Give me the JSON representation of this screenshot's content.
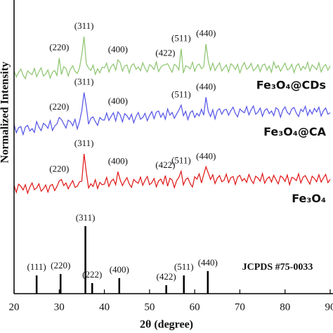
{
  "chart_data": {
    "type": "line",
    "xlabel": "2θ (degree)",
    "ylabel": "Normalized Intensity",
    "xlim": [
      20,
      90
    ],
    "xticks": [
      20,
      30,
      40,
      50,
      60,
      70,
      80,
      90
    ],
    "ylim": [
      0,
      100
    ],
    "x": [
      20,
      20.5,
      21,
      21.5,
      22,
      22.5,
      23,
      23.5,
      24,
      24.5,
      25,
      25.5,
      26,
      26.5,
      27,
      27.5,
      28,
      28.5,
      29,
      29.5,
      30,
      30.5,
      31,
      31.5,
      32,
      32.5,
      33,
      33.5,
      34,
      34.5,
      35,
      35.5,
      36,
      36.5,
      37,
      37.5,
      38,
      38.5,
      39,
      39.5,
      40,
      40.5,
      41,
      41.5,
      42,
      42.5,
      43,
      43.5,
      44,
      44.5,
      45,
      45.5,
      46,
      46.5,
      47,
      47.5,
      48,
      48.5,
      49,
      49.5,
      50,
      50.5,
      51,
      51.5,
      52,
      52.5,
      53,
      53.5,
      54,
      54.5,
      55,
      55.5,
      56,
      56.5,
      57,
      57.5,
      58,
      58.5,
      59,
      59.5,
      60,
      60.5,
      61,
      61.5,
      62,
      62.5,
      63,
      63.5,
      64,
      64.5,
      65,
      65.5,
      66,
      66.5,
      67,
      67.5,
      68,
      68.5,
      69,
      69.5,
      70,
      70.5,
      71,
      71.5,
      72,
      72.5,
      73,
      73.5,
      74,
      74.5,
      75,
      75.5,
      76,
      76.5,
      77,
      77.5,
      78,
      78.5,
      79,
      79.5,
      80,
      80.5,
      81,
      81.5,
      82,
      82.5,
      83,
      83.5,
      84,
      84.5,
      85,
      85.5,
      86,
      86.5,
      87,
      87.5,
      88,
      88.5,
      89,
      89.5,
      90
    ],
    "series": [
      {
        "name": "Fe₃O₄@CDs",
        "color": "#8cc46e",
        "values": [
          75.8,
          73.8,
          75.3,
          76.5,
          74.4,
          73.2,
          75.9,
          75.1,
          74.6,
          76.7,
          73.9,
          75.6,
          76.9,
          74.1,
          74.8,
          76.2,
          73.4,
          75.4,
          76.0,
          74.3,
          80.2,
          74.6,
          77.3,
          76.7,
          74.1,
          76.5,
          77.6,
          75.7,
          75.0,
          76.9,
          81.4,
          87.5,
          78.3,
          76.8,
          76.0,
          77.8,
          74.7,
          76.6,
          75.2,
          77.1,
          76.9,
          78.5,
          75.5,
          77.3,
          78.2,
          76.1,
          79.6,
          78.7,
          75.8,
          77.5,
          77.9,
          75.2,
          77.7,
          78.3,
          76.4,
          77.2,
          75.9,
          78.6,
          76.7,
          75.5,
          78.0,
          77.4,
          76.3,
          78.9,
          75.6,
          77.1,
          77.8,
          78.0,
          78.3,
          76.8,
          75.4,
          78.1,
          77.5,
          76.2,
          83.4,
          75.1,
          77.6,
          77.3,
          76.5,
          78.8,
          75.7,
          77.7,
          78.2,
          76.6,
          77.3,
          85.0,
          79.2,
          76.1,
          78.5,
          76.0,
          77.4,
          78.6,
          75.8,
          76.9,
          77.9,
          75.5,
          78.3,
          77.6,
          76.3,
          78.1,
          75.2,
          77.3,
          78.7,
          76.4,
          77.0,
          78.4,
          75.9,
          76.7,
          78.0,
          75.6,
          77.8,
          78.2,
          76.1,
          77.5,
          75.4,
          78.9,
          76.8,
          77.7,
          75.7,
          77.2,
          78.5,
          76.2,
          76.6,
          78.1,
          75.3,
          77.6,
          78.3,
          76.0,
          77.4,
          76.5,
          78.8,
          75.8,
          77.9,
          77.1,
          76.3,
          78.6,
          75.5,
          77.3,
          78.0,
          76.1,
          77.5
        ],
        "peaks": [
          {
            "label": "(220)",
            "x": 30
          },
          {
            "label": "(311)",
            "x": 35.5
          },
          {
            "label": "(400)",
            "x": 43
          },
          {
            "label": "(422)",
            "x": 53.5
          },
          {
            "label": "(511)",
            "x": 57
          },
          {
            "label": "(440)",
            "x": 62.5
          }
        ]
      },
      {
        "name": "Fe₃O₄@CA",
        "color": "#5353e6",
        "values": [
          57.7,
          54.8,
          56.5,
          56.9,
          54.2,
          56.7,
          57.3,
          55.4,
          56.2,
          54.9,
          58.6,
          56.7,
          55.5,
          58.0,
          57.4,
          56.3,
          58.9,
          55.6,
          57.1,
          57.8,
          60.0,
          59.3,
          57.8,
          56.4,
          59.1,
          58.5,
          57.2,
          59.4,
          56.1,
          58.6,
          62.3,
          68.5,
          63.8,
          57.7,
          59.7,
          60.2,
          58.6,
          57.3,
          60.0,
          59.2,
          59.1,
          61.5,
          59.0,
          60.4,
          61.6,
          58.8,
          61.9,
          60.9,
          58.5,
          61.3,
          60.6,
          59.3,
          61.1,
          58.2,
          60.3,
          61.7,
          59.4,
          60.0,
          61.4,
          58.9,
          60.7,
          62.0,
          59.6,
          61.8,
          62.2,
          60.1,
          61.5,
          59.4,
          62.9,
          60.8,
          61.7,
          59.7,
          61.2,
          62.5,
          64.2,
          60.6,
          62.1,
          59.3,
          61.6,
          62.3,
          60.0,
          61.4,
          60.5,
          62.8,
          60.8,
          66.9,
          62.1,
          60.3,
          62.6,
          59.5,
          62.3,
          63.0,
          61.1,
          62.5,
          62.8,
          60.8,
          62.3,
          63.5,
          61.4,
          60.2,
          62.9,
          62.1,
          61.6,
          63.7,
          60.9,
          62.6,
          63.9,
          61.1,
          61.8,
          63.2,
          60.4,
          62.4,
          63.0,
          61.3,
          62.2,
          60.6,
          63.3,
          62.7,
          60.1,
          62.5,
          63.6,
          61.7,
          61.0,
          62.9,
          63.4,
          61.5,
          60.3,
          62.8,
          62.0,
          63.8,
          60.7,
          62.6,
          61.2,
          63.1,
          61.9,
          63.5,
          60.5,
          62.3,
          63.2,
          61.1,
          61.6
        ],
        "peaks": [
          {
            "label": "(220)",
            "x": 30
          },
          {
            "label": "(311)",
            "x": 35.5
          },
          {
            "label": "(400)",
            "x": 43
          },
          {
            "label": "(511)",
            "x": 57
          },
          {
            "label": "(440)",
            "x": 62.5
          }
        ]
      },
      {
        "name": "Fe₃O₄",
        "color": "#e01414",
        "values": [
          36.9,
          34.5,
          37.3,
          36.6,
          35.3,
          37.1,
          34.2,
          36.3,
          37.7,
          35.4,
          36.0,
          37.4,
          34.9,
          35.7,
          37.0,
          34.6,
          36.8,
          37.2,
          35.1,
          36.5,
          38.4,
          38.9,
          36.8,
          37.7,
          35.7,
          37.2,
          38.5,
          36.2,
          36.6,
          38.1,
          38.3,
          47.6,
          41.3,
          36.0,
          37.4,
          36.5,
          38.8,
          35.8,
          37.9,
          37.1,
          37.3,
          39.6,
          36.5,
          38.3,
          39.0,
          37.1,
          41.5,
          38.8,
          36.8,
          38.3,
          39.5,
          37.4,
          36.2,
          38.9,
          38.1,
          37.6,
          39.7,
          36.9,
          38.6,
          39.9,
          37.1,
          37.8,
          39.2,
          36.4,
          38.4,
          39.0,
          37.3,
          40.2,
          36.6,
          39.3,
          38.7,
          36.1,
          38.5,
          39.6,
          41.7,
          37.0,
          38.9,
          39.4,
          37.5,
          36.3,
          39.8,
          39.0,
          40.8,
          37.7,
          40.6,
          43.2,
          41.1,
          38.9,
          40.5,
          37.5,
          39.3,
          40.2,
          38.1,
          38.6,
          40.7,
          37.8,
          39.5,
          39.9,
          37.2,
          39.7,
          40.3,
          38.4,
          39.2,
          37.9,
          40.6,
          38.7,
          37.5,
          40.0,
          39.4,
          38.3,
          40.9,
          37.6,
          39.1,
          39.8,
          38.0,
          40.3,
          38.8,
          37.4,
          40.1,
          39.5,
          38.2,
          40.4,
          37.1,
          39.6,
          39.3,
          38.5,
          40.8,
          37.7,
          39.7,
          40.2,
          38.6,
          37.3,
          40.0,
          39.2,
          38.1,
          40.5,
          38.0,
          39.4,
          40.6,
          37.8,
          38.9
        ],
        "peaks": [
          {
            "label": "(220)",
            "x": 30
          },
          {
            "label": "(311)",
            "x": 35.5
          },
          {
            "label": "(400)",
            "x": 43
          },
          {
            "label": "(422)",
            "x": 53.5
          },
          {
            "label": "(511)",
            "x": 57
          },
          {
            "label": "(440)",
            "x": 62.5
          }
        ]
      }
    ],
    "reference": {
      "name": "JCPDS #75-0033",
      "color": "#000000",
      "peaks": [
        {
          "label": "(111)",
          "x": 25.0,
          "value": 6.2
        },
        {
          "label": "(220)",
          "x": 30.3,
          "value": 6.7
        },
        {
          "label": "(311)",
          "x": 35.8,
          "value": 23.0
        },
        {
          "label": "(222)",
          "x": 37.3,
          "value": 3.6
        },
        {
          "label": "(400)",
          "x": 43.3,
          "value": 5.3
        },
        {
          "label": "(422)",
          "x": 53.7,
          "value": 2.9
        },
        {
          "label": "(511)",
          "x": 57.6,
          "value": 6.2
        },
        {
          "label": "(440)",
          "x": 62.9,
          "value": 7.7
        }
      ]
    }
  }
}
